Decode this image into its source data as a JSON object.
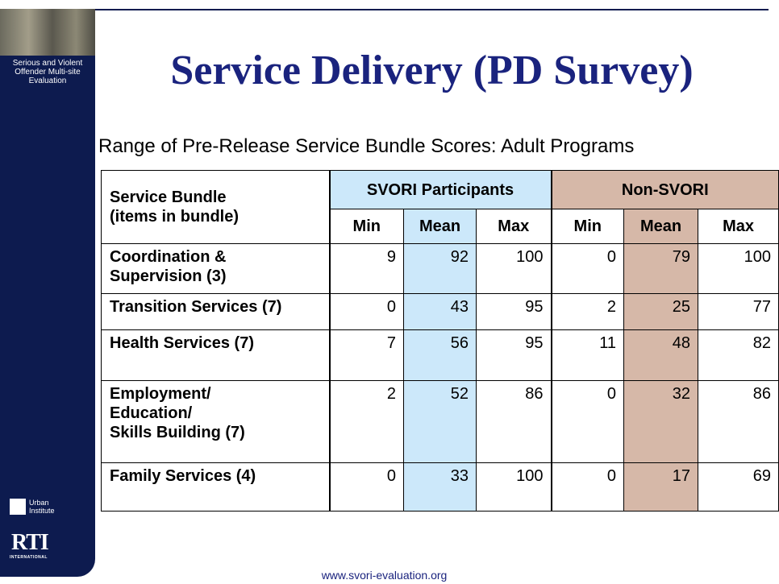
{
  "sidebar": {
    "program": "Serious and Violent Offender Multi-site Evaluation",
    "logo_urban": "Urban Institute",
    "logo_rti": "RTI",
    "logo_rti_sub": "INTERNATIONAL"
  },
  "title": "Service Delivery (PD Survey)",
  "subtitle": "Range of Pre-Release Service Bundle Scores: Adult Programs",
  "table": {
    "corner": [
      "Service Bundle",
      "(items in bundle)"
    ],
    "group_headers": [
      "SVORI Participants",
      "Non-SVORI"
    ],
    "column_headers": [
      "Min",
      "Mean",
      "Max",
      "Min",
      "Mean",
      "Max"
    ],
    "rows": [
      {
        "label": [
          "Coordination &",
          "Supervision (3)"
        ],
        "values": [
          9,
          92,
          100,
          0,
          79,
          100
        ]
      },
      {
        "label": [
          "Transition Services (7)"
        ],
        "values": [
          0,
          43,
          95,
          2,
          25,
          77
        ]
      },
      {
        "label": [
          "Health Services (7)"
        ],
        "values": [
          7,
          56,
          95,
          11,
          48,
          82
        ]
      },
      {
        "label": [
          "Employment/",
          "Education/",
          "Skills Building (7)"
        ],
        "values": [
          2,
          52,
          86,
          0,
          32,
          86
        ]
      },
      {
        "label": [
          "Family Services (4)"
        ],
        "values": [
          0,
          33,
          100,
          0,
          17,
          69
        ]
      }
    ]
  },
  "footer": "www.svori-evaluation.org"
}
